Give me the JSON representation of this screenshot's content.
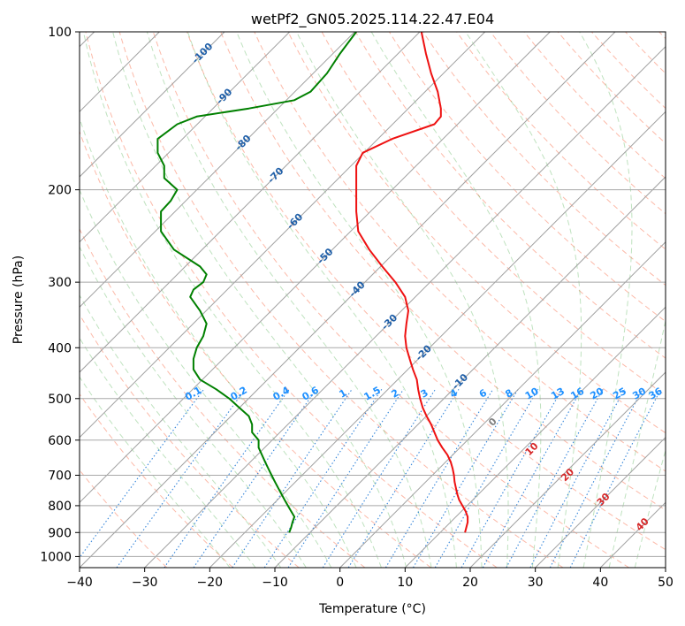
{
  "chart_data": {
    "type": "line",
    "subtype": "skew-t log-p diagram",
    "title": "wetPf2_GN05.2025.114.22.47.E04",
    "xlabel": "Temperature (°C)",
    "ylabel": "Pressure (hPa)",
    "xlim": [
      -40,
      50
    ],
    "ylim": [
      1050,
      100
    ],
    "y_scale": "log",
    "grid": true,
    "x_ticks": [
      -40,
      -30,
      -20,
      -10,
      0,
      10,
      20,
      30,
      40,
      50
    ],
    "x_tick_labels": [
      "−40",
      "−30",
      "−20",
      "−10",
      "0",
      "10",
      "20",
      "30",
      "40",
      "50"
    ],
    "y_ticks": [
      1000,
      900,
      800,
      700,
      600,
      500,
      400,
      300,
      200,
      100
    ],
    "y_tick_labels": [
      "1000",
      "900",
      "800",
      "700",
      "600",
      "500",
      "400",
      "300",
      "200",
      "100"
    ],
    "isotherm_labels": {
      "color": "#1f5fa8",
      "labels": [
        "-100",
        "-90",
        "-80",
        "-70",
        "-60",
        "-50",
        "-40",
        "-30",
        "-20",
        "-10"
      ],
      "values": [
        -100,
        -90,
        -80,
        -70,
        -60,
        -50,
        -40,
        -30,
        -20,
        -10
      ],
      "pressures": [
        110,
        133,
        163,
        188,
        230,
        268,
        310,
        358,
        410,
        465
      ]
    },
    "mixing_ratio_labels": {
      "color": "#1e90ff",
      "labels": [
        "0.1",
        "0.2",
        "0.4",
        "0.6",
        "1",
        "1.5",
        "2",
        "3",
        "4",
        "6",
        "8",
        "10",
        "13",
        "16",
        "20",
        "25",
        "30",
        "36"
      ],
      "x_positions": [
        -22.5,
        -15.5,
        -9,
        -4.5,
        0.5,
        5,
        8.5,
        13,
        17.5,
        22,
        26,
        29.5,
        33.5,
        36.5,
        39.5,
        43,
        46,
        48.5
      ],
      "pressure": 490
    },
    "moist_adiabat_labels": {
      "color": "#d62728",
      "labels": [
        "10",
        "20",
        "30",
        "40"
      ],
      "x_positions": [
        29.5,
        35,
        40.5,
        46.5
      ],
      "pressures": [
        625,
        700,
        780,
        870
      ],
      "zero_label": "0",
      "zero_x": 23.5,
      "zero_p": 555
    },
    "series": [
      {
        "name": "Temperature",
        "color": "#ee1111",
        "pressure": [
          100,
          110,
          120,
          130,
          140,
          145,
          150,
          160,
          170,
          180,
          200,
          220,
          240,
          260,
          280,
          300,
          320,
          340,
          360,
          380,
          400,
          420,
          440,
          460,
          480,
          500,
          520,
          540,
          560,
          580,
          600,
          620,
          640,
          660,
          680,
          700,
          720,
          740,
          760,
          780,
          800,
          820,
          840,
          860,
          880,
          900
        ],
        "x": [
          12.5,
          13.2,
          14,
          15,
          15.5,
          15.5,
          14.5,
          8,
          3.5,
          2.5,
          2.5,
          2.5,
          2.8,
          4.5,
          6.5,
          8.5,
          10,
          10.5,
          10.2,
          10,
          10.2,
          10.7,
          11.2,
          11.8,
          12,
          12.3,
          12.7,
          13.3,
          14,
          14.5,
          15,
          15.7,
          16.5,
          17,
          17.3,
          17.5,
          17.6,
          17.8,
          18,
          18.3,
          18.8,
          19.3,
          19.6,
          19.6,
          19.4,
          19.2
        ]
      },
      {
        "name": "Dewpoint",
        "color": "#008000",
        "pressure": [
          100,
          110,
          120,
          130,
          135,
          140,
          145,
          150,
          160,
          170,
          180,
          190,
          200,
          210,
          220,
          240,
          260,
          280,
          290,
          300,
          310,
          320,
          340,
          360,
          380,
          400,
          420,
          440,
          460,
          480,
          500,
          520,
          540,
          560,
          580,
          600,
          620,
          640,
          660,
          680,
          700,
          720,
          740,
          760,
          780,
          800,
          820,
          840,
          860,
          880,
          900
        ],
        "x": [
          2.5,
          0,
          -2,
          -4.5,
          -7,
          -14,
          -22,
          -25,
          -28,
          -28,
          -27,
          -27,
          -25,
          -26,
          -27.5,
          -27.5,
          -25.5,
          -21.5,
          -20.5,
          -21,
          -22.5,
          -23,
          -21.5,
          -20.5,
          -21,
          -22,
          -22.5,
          -22.5,
          -21.5,
          -19,
          -17,
          -15.5,
          -14,
          -13.5,
          -13.5,
          -12.5,
          -12.5,
          -12,
          -11.5,
          -11,
          -10.5,
          -10,
          -9.5,
          -9,
          -8.5,
          -8,
          -7.5,
          -7,
          -7.3,
          -7.5,
          -7.8
        ]
      }
    ]
  }
}
